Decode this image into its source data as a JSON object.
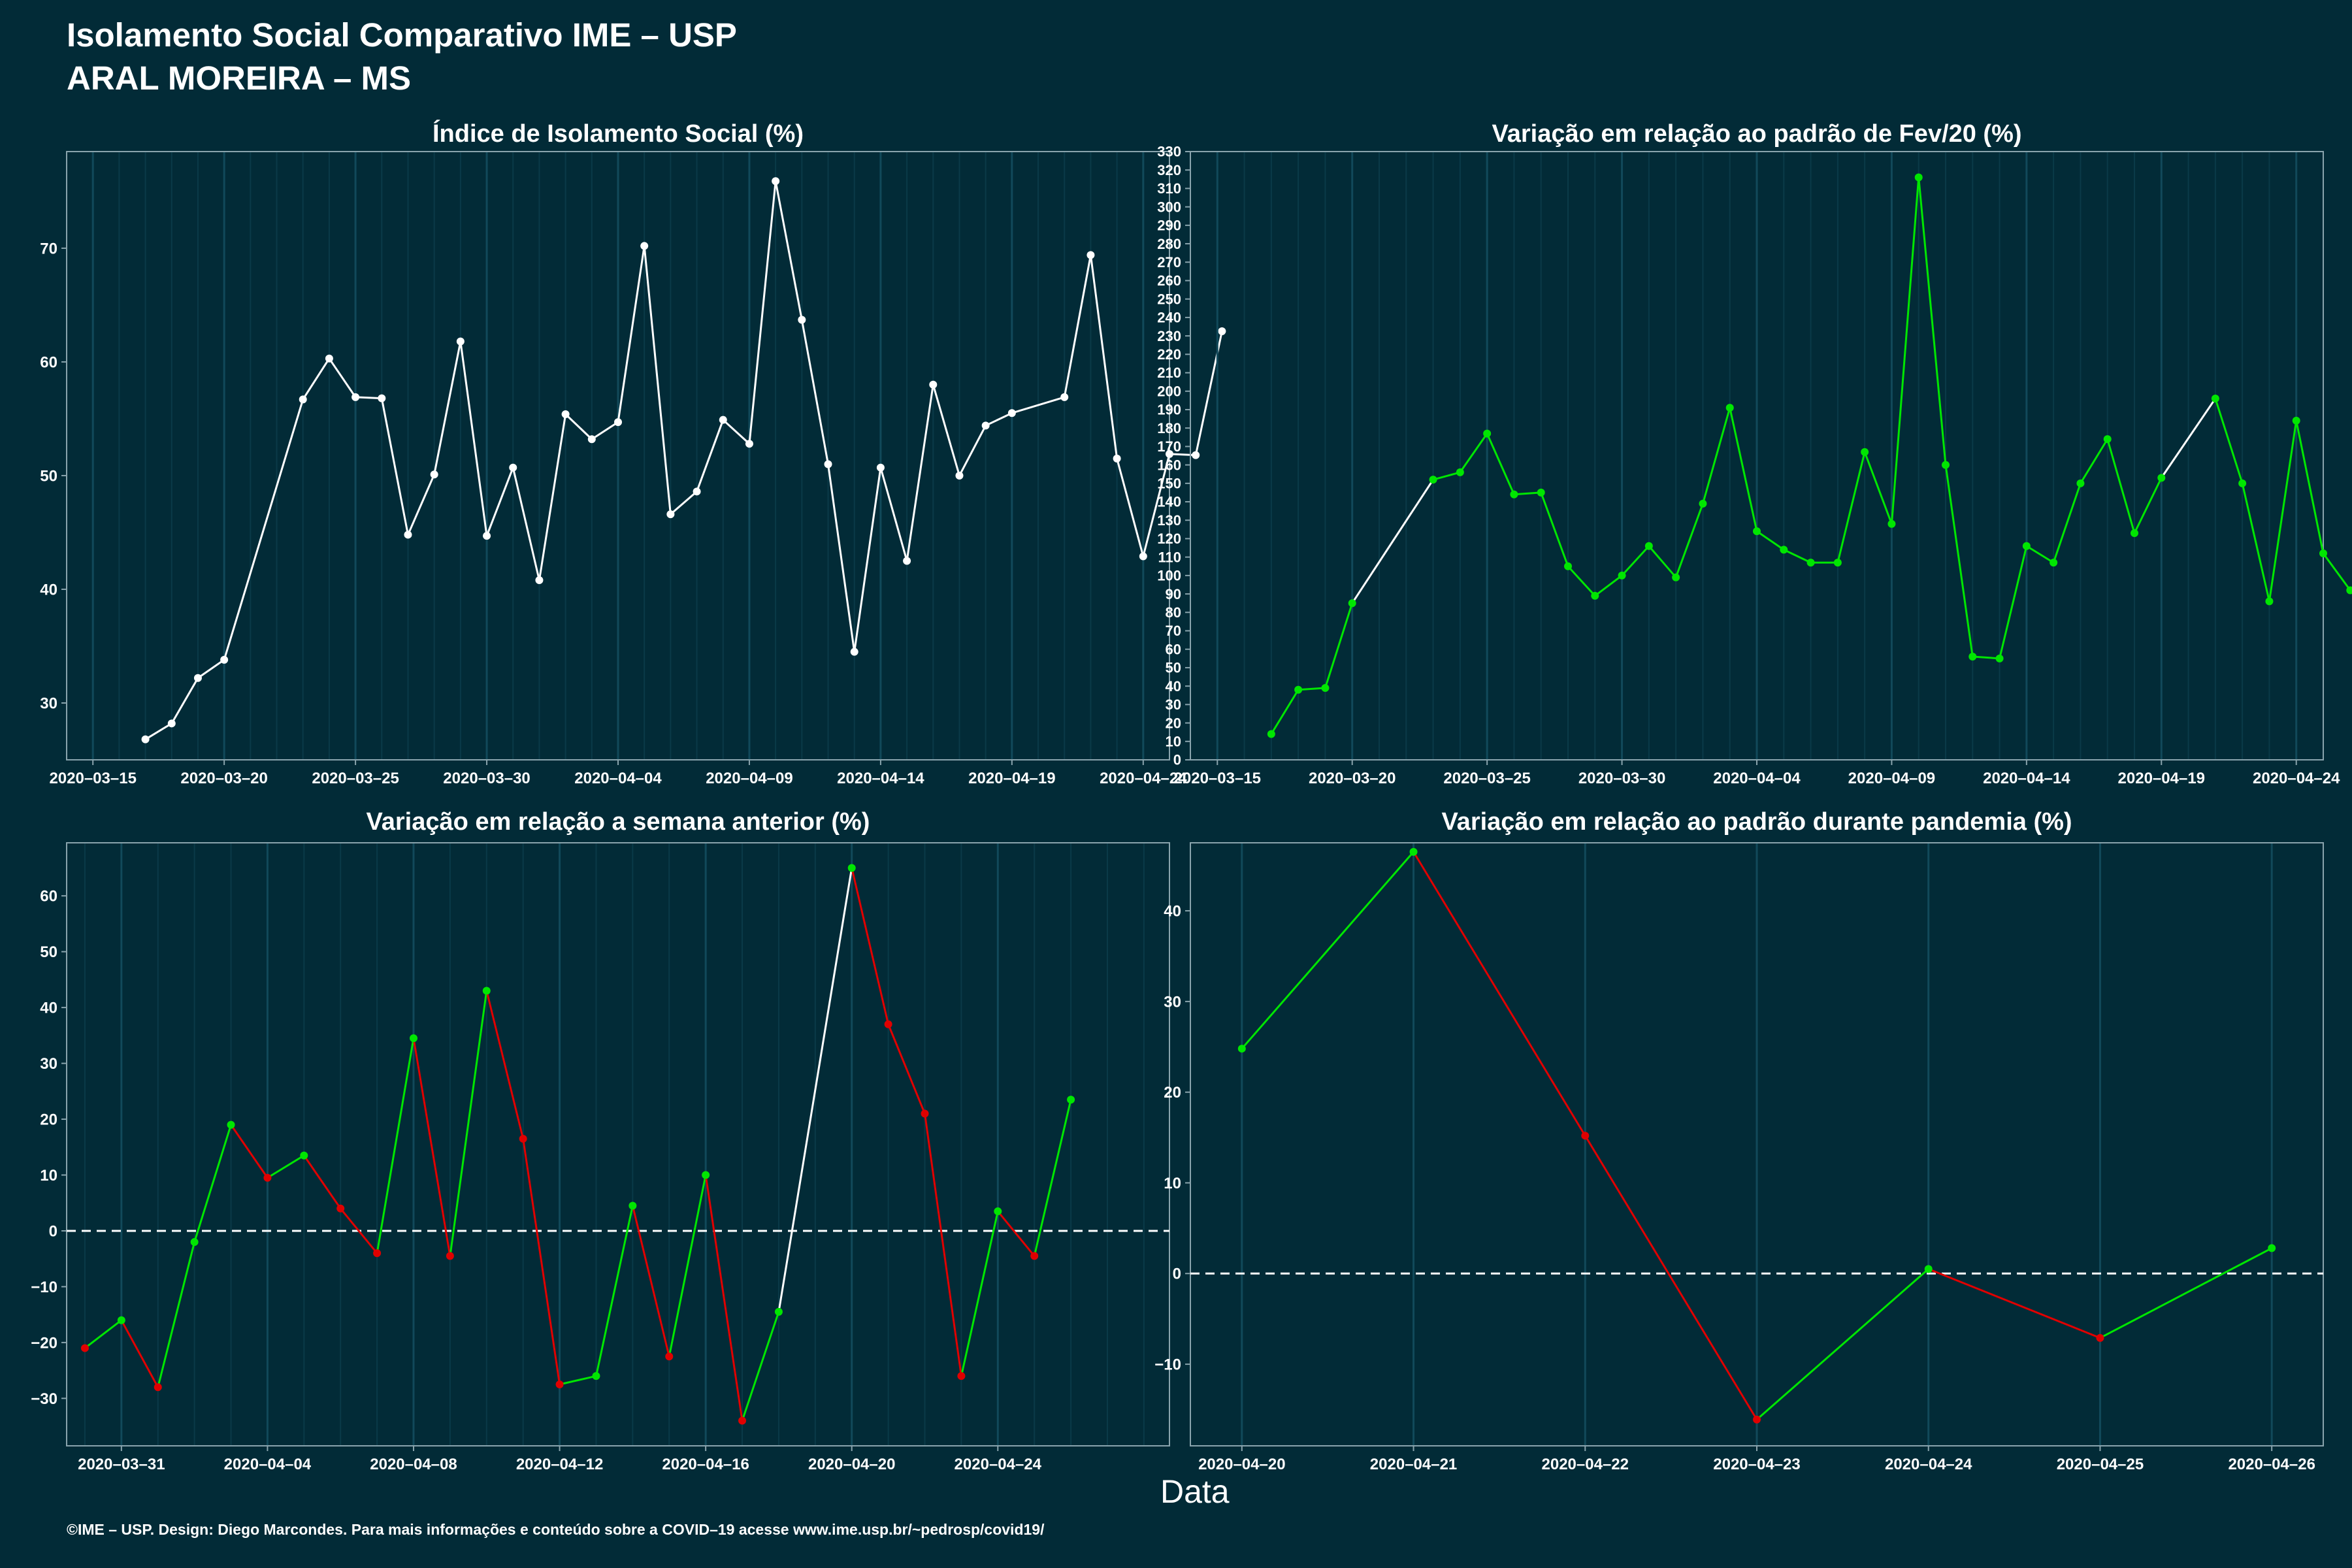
{
  "header": {
    "title_line1": "Isolamento Social Comparativo IME – USP",
    "title_line2": "ARAL MOREIRA – MS"
  },
  "footer": "©IME – USP. Design: Diego Marcondes. Para mais informações e conteúdo sobre a COVID–19 acesse www.ime.usp.br/~pedrosp/covid19/",
  "xaxis_title": "Data",
  "colors": {
    "background": "#022b37",
    "positive": "#00e600",
    "negative": "#e00000",
    "neutral": "#ffffff",
    "grid": "#0e4050"
  },
  "chart_data": [
    {
      "type": "line",
      "title": "Índice de Isolamento Social (%)",
      "x_start": "2020-03-16",
      "xlim_days": [
        -1.0,
        41.0
      ],
      "ylim": [
        25,
        78.5
      ],
      "yticks": [
        30,
        40,
        50,
        60,
        70
      ],
      "ytick_labels": [
        "30",
        "40",
        "50",
        "60",
        "70"
      ],
      "xticks": [
        0,
        5,
        10,
        15,
        20,
        25,
        30,
        35,
        40
      ],
      "xtick_labels": [
        "2020–03–15",
        "2020–03–20",
        "2020–03–25",
        "2020–03–30",
        "2020–04–04",
        "2020–04–09",
        "2020–04–14",
        "2020–04–19",
        "2020–04–24"
      ],
      "x": [
        2,
        3,
        4,
        5,
        8,
        9,
        10,
        11,
        12,
        13,
        14,
        15,
        16,
        17,
        18,
        19,
        20,
        21,
        22,
        23,
        24,
        25,
        26,
        27,
        28,
        29,
        30,
        31,
        32,
        33,
        34,
        35,
        37,
        38,
        39,
        40,
        41,
        42,
        43,
        44
      ],
      "values": [
        26.8,
        28.2,
        32.2,
        33.8,
        56.7,
        60.3,
        56.9,
        56.8,
        44.8,
        50.1,
        61.8,
        44.7,
        50.7,
        40.8,
        55.4,
        53.2,
        54.7,
        70.2,
        46.6,
        48.6,
        54.9,
        52.8,
        75.9,
        63.7,
        51.0,
        34.5,
        50.7,
        42.5,
        58.0,
        50.0,
        54.4,
        55.5,
        56.9,
        69.4,
        51.5,
        42.9,
        51.9,
        51.8,
        62.7,
        null
      ],
      "series_colors": [
        "#ffffff"
      ]
    },
    {
      "type": "line",
      "title": "Variação em relação ao padrão de Fev/20 (%)",
      "x_start": "2020-03-16",
      "xlim_days": [
        -1.0,
        41.0
      ],
      "ylim": [
        0,
        330
      ],
      "yticks": [
        0,
        10,
        20,
        30,
        40,
        50,
        60,
        70,
        80,
        90,
        100,
        110,
        120,
        130,
        140,
        150,
        160,
        170,
        180,
        190,
        200,
        210,
        220,
        230,
        240,
        250,
        260,
        270,
        280,
        290,
        300,
        310,
        320,
        330
      ],
      "ytick_labels": [
        "0",
        "10",
        "20",
        "30",
        "40",
        "50",
        "60",
        "70",
        "80",
        "90",
        "100",
        "110",
        "120",
        "130",
        "140",
        "150",
        "160",
        "170",
        "180",
        "190",
        "200",
        "210",
        "220",
        "230",
        "240",
        "250",
        "260",
        "270",
        "280",
        "290",
        "300",
        "310",
        "320",
        "330"
      ],
      "xticks": [
        0,
        5,
        10,
        15,
        20,
        25,
        30,
        35,
        40
      ],
      "xtick_labels": [
        "2020–03–15",
        "2020–03–20",
        "2020–03–25",
        "2020–03–30",
        "2020–04–04",
        "2020–04–09",
        "2020–04–14",
        "2020–04–19",
        "2020–04–24"
      ],
      "x": [
        2,
        3,
        4,
        5,
        8,
        9,
        10,
        11,
        12,
        13,
        14,
        15,
        16,
        17,
        18,
        19,
        20,
        21,
        22,
        23,
        24,
        25,
        26,
        27,
        28,
        29,
        30,
        31,
        32,
        33,
        34,
        35,
        37,
        38,
        39,
        40,
        41,
        42,
        43
      ],
      "values": [
        14,
        38,
        39,
        85,
        152,
        156,
        177,
        144,
        145,
        105,
        89,
        100,
        116,
        99,
        139,
        191,
        124,
        114,
        107,
        107,
        167,
        128,
        316,
        160,
        56,
        55,
        116,
        107,
        150,
        174,
        123,
        153,
        196,
        150,
        86,
        184,
        112,
        92,
        null
      ],
      "series_colors": [
        "#00e600"
      ]
    },
    {
      "type": "line",
      "title": "Variação em relação a semana anterior (%)",
      "x_start": "2020-03-30",
      "xlim_days": [
        -0.5,
        29.7
      ],
      "ylim": [
        -38.5,
        69.5
      ],
      "yticks": [
        -30,
        -20,
        -10,
        0,
        10,
        20,
        30,
        40,
        50,
        60
      ],
      "ytick_labels": [
        "−30",
        "−20",
        "−10",
        "0",
        "10",
        "20",
        "30",
        "40",
        "50",
        "60"
      ],
      "xticks": [
        1,
        5,
        9,
        13,
        17,
        21,
        25
      ],
      "xtick_labels": [
        "2020–03–31",
        "2020–04–04",
        "2020–04–08",
        "2020–04–12",
        "2020–04–16",
        "2020–04–20",
        "2020–04–24"
      ],
      "x": [
        0,
        1,
        2,
        3,
        4,
        5,
        6,
        7,
        8,
        9,
        10,
        11,
        12,
        13,
        14,
        15,
        16,
        17,
        18,
        19,
        21,
        22,
        23,
        24,
        25,
        26,
        27,
        28
      ],
      "values": [
        -21,
        -16,
        -28,
        -2,
        19,
        9.5,
        13.5,
        4,
        -4,
        34.5,
        -4.5,
        43,
        16.5,
        -27.5,
        -26,
        4.5,
        -22.5,
        10,
        -34,
        -14.5,
        65,
        37,
        21,
        -26,
        3.5,
        -4.5,
        23.5,
        null
      ],
      "reference_line": 0,
      "series_colors": [
        "#00e600",
        "#e00000",
        "#ffffff"
      ]
    },
    {
      "type": "line",
      "title": "Variação em relação ao padrão durante pandemia (%)",
      "x_start": "2020-04-20",
      "xlim_days": [
        -0.3,
        6.3
      ],
      "ylim": [
        -19,
        47.5
      ],
      "yticks": [
        -10,
        0,
        10,
        20,
        30,
        40
      ],
      "ytick_labels": [
        "−10",
        "0",
        "10",
        "20",
        "30",
        "40"
      ],
      "xticks": [
        0,
        1,
        2,
        3,
        4,
        5,
        6
      ],
      "xtick_labels": [
        "2020–04–20",
        "2020–04–21",
        "2020–04–22",
        "2020–04–23",
        "2020–04–24",
        "2020–04–25",
        "2020–04–26"
      ],
      "x": [
        0,
        1,
        2,
        3,
        4,
        5,
        6
      ],
      "values": [
        24.8,
        46.5,
        15.2,
        -16.1,
        0.5,
        -7.1,
        2.8
      ],
      "reference_line": 0,
      "series_colors": [
        "#00e600",
        "#e00000"
      ]
    }
  ]
}
